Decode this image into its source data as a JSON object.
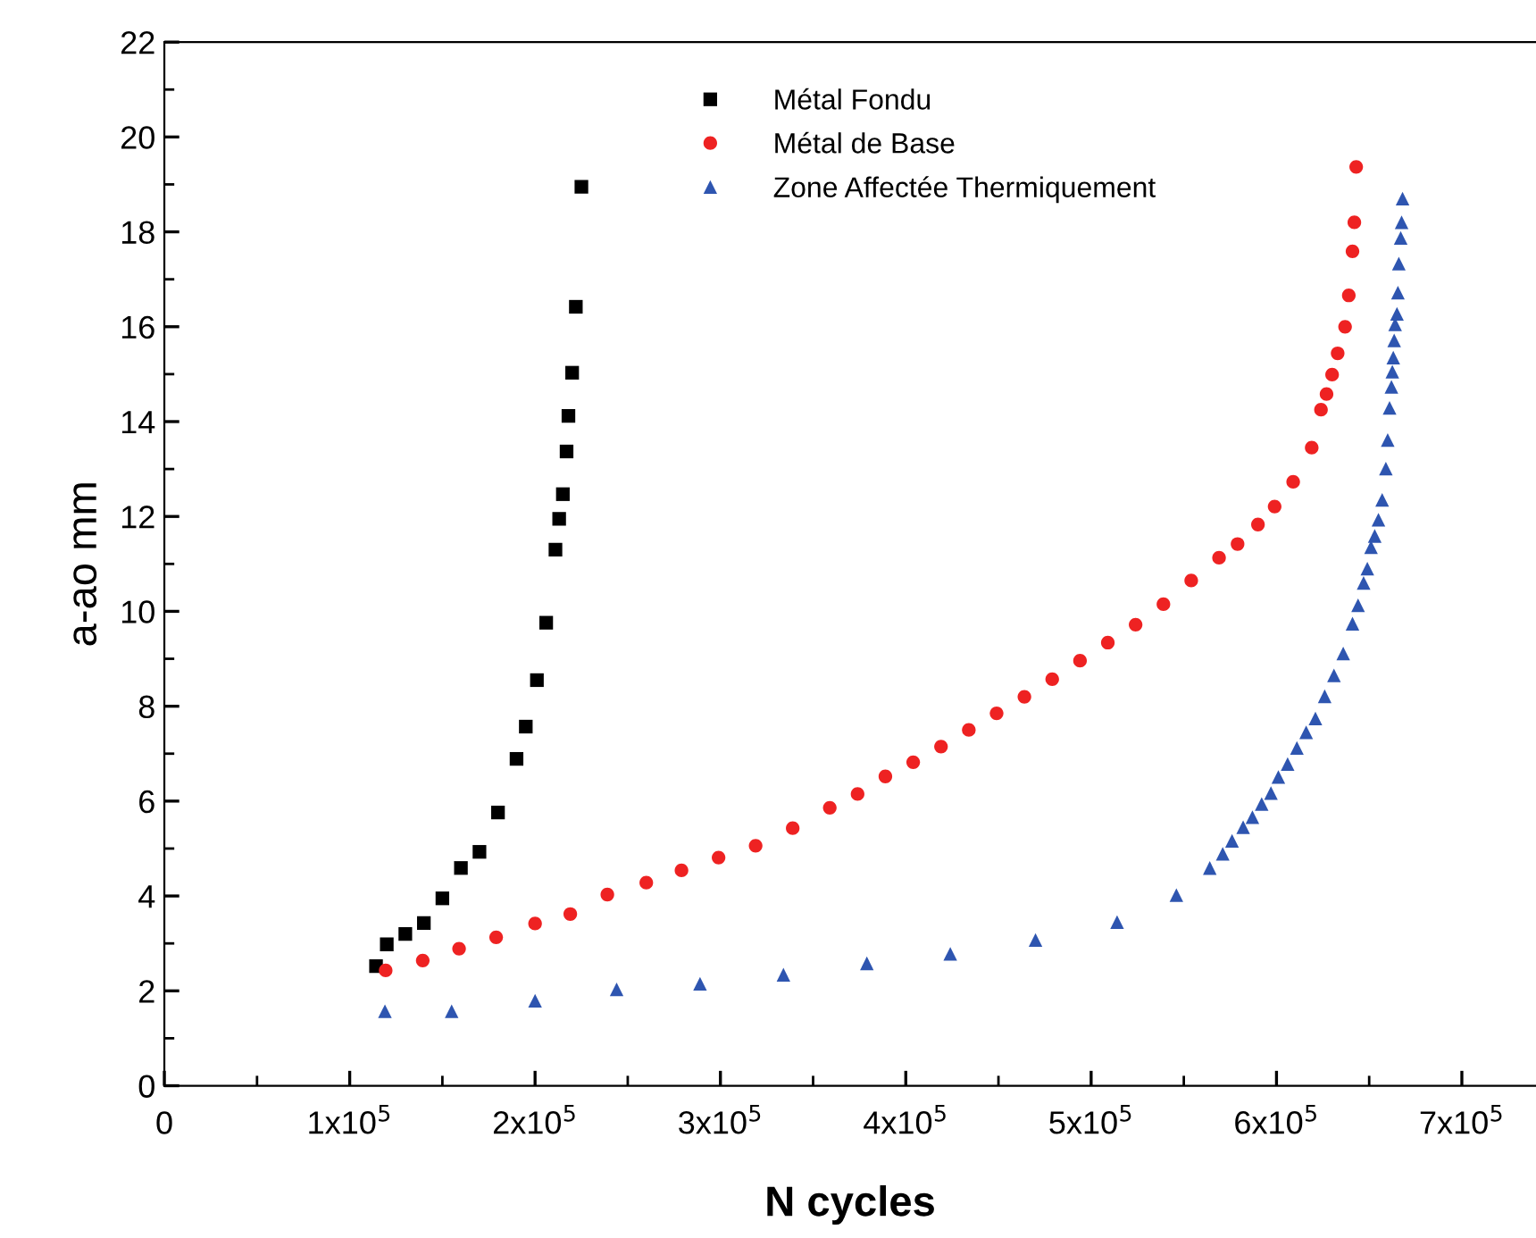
{
  "chart_data": {
    "type": "scatter",
    "xlabel": "N cycles",
    "ylabel": "a-ao mm",
    "xlim": [
      0,
      740000
    ],
    "ylim": [
      0,
      22
    ],
    "xticks": [
      0,
      {
        "value": 100000,
        "label": "1x10$^{5}$"
      },
      {
        "value": 200000,
        "label": "2x10$^{5}$"
      },
      {
        "value": 300000,
        "label": "3x10$^{5}$"
      },
      {
        "value": 400000,
        "label": "4x10$^{5}$"
      },
      {
        "value": 500000,
        "label": "5x10$^{5}$"
      },
      {
        "value": 600000,
        "label": "6x10$^{5}$"
      },
      {
        "value": 700000,
        "label": "7x10$^{5}$"
      }
    ],
    "yticks": [
      0,
      2,
      4,
      6,
      8,
      10,
      12,
      14,
      16,
      18,
      20,
      22
    ],
    "grid": false,
    "legend": "top",
    "series": [
      {
        "name": "Métal Fondu",
        "color": "#000000",
        "marker": "square",
        "x": [
          114200,
          120000,
          130000,
          140000,
          150000,
          160000,
          170000,
          180000,
          190000,
          195000,
          201000,
          206000,
          211000,
          213000,
          215000,
          217000,
          218000,
          220000,
          222000,
          225000
        ],
        "values": [
          2.52,
          2.98,
          3.2,
          3.43,
          3.95,
          4.59,
          4.93,
          5.76,
          6.89,
          7.57,
          8.55,
          9.76,
          11.3,
          11.95,
          12.47,
          13.37,
          14.12,
          15.03,
          16.42,
          18.95
        ]
      },
      {
        "name": "Métal de Base",
        "color": "#ee2222",
        "marker": "circle",
        "x": [
          119400,
          139400,
          159000,
          179000,
          200000,
          219000,
          239000,
          260000,
          279000,
          299000,
          319000,
          339000,
          359000,
          374000,
          389000,
          404000,
          419000,
          434000,
          449000,
          464000,
          479000,
          494000,
          509000,
          524000,
          539000,
          554000,
          569000,
          579000,
          590000,
          599000,
          609000,
          619000,
          624000,
          627000,
          630000,
          633000,
          637000,
          639000,
          641000,
          642000,
          643000
        ],
        "values": [
          2.43,
          2.64,
          2.89,
          3.13,
          3.42,
          3.62,
          4.03,
          4.28,
          4.54,
          4.81,
          5.06,
          5.43,
          5.86,
          6.15,
          6.52,
          6.82,
          7.15,
          7.5,
          7.85,
          8.2,
          8.57,
          8.96,
          9.34,
          9.72,
          10.15,
          10.65,
          11.13,
          11.42,
          11.83,
          12.21,
          12.73,
          13.45,
          14.25,
          14.58,
          14.99,
          15.44,
          16.0,
          16.66,
          17.59,
          18.2,
          19.37
        ]
      },
      {
        "name": "Zone Affectée Thermiquement",
        "color": "#2e55b0",
        "marker": "triangle",
        "x": [
          119000,
          155000,
          200000,
          244000,
          289000,
          334000,
          379000,
          424000,
          470000,
          514000,
          546000,
          564000,
          571000,
          576000,
          582000,
          587000,
          592000,
          597000,
          601000,
          606000,
          611000,
          616000,
          621000,
          626000,
          631000,
          636000,
          641000,
          644000,
          647000,
          649000,
          651000,
          653000,
          655000,
          657000,
          659000,
          660000,
          661000,
          662000,
          662500,
          663000,
          663500,
          664000,
          665000,
          665500,
          666000,
          667000,
          667500,
          668000
        ],
        "values": [
          1.57,
          1.57,
          1.79,
          2.03,
          2.15,
          2.34,
          2.58,
          2.78,
          3.07,
          3.45,
          4.02,
          4.59,
          4.89,
          5.16,
          5.45,
          5.66,
          5.94,
          6.17,
          6.51,
          6.78,
          7.12,
          7.45,
          7.74,
          8.21,
          8.65,
          9.11,
          9.74,
          10.13,
          10.6,
          10.9,
          11.35,
          11.59,
          11.93,
          12.35,
          13.01,
          13.61,
          14.29,
          14.73,
          15.05,
          15.35,
          15.71,
          16.05,
          16.27,
          16.72,
          17.33,
          17.87,
          18.2,
          18.7
        ]
      }
    ]
  }
}
